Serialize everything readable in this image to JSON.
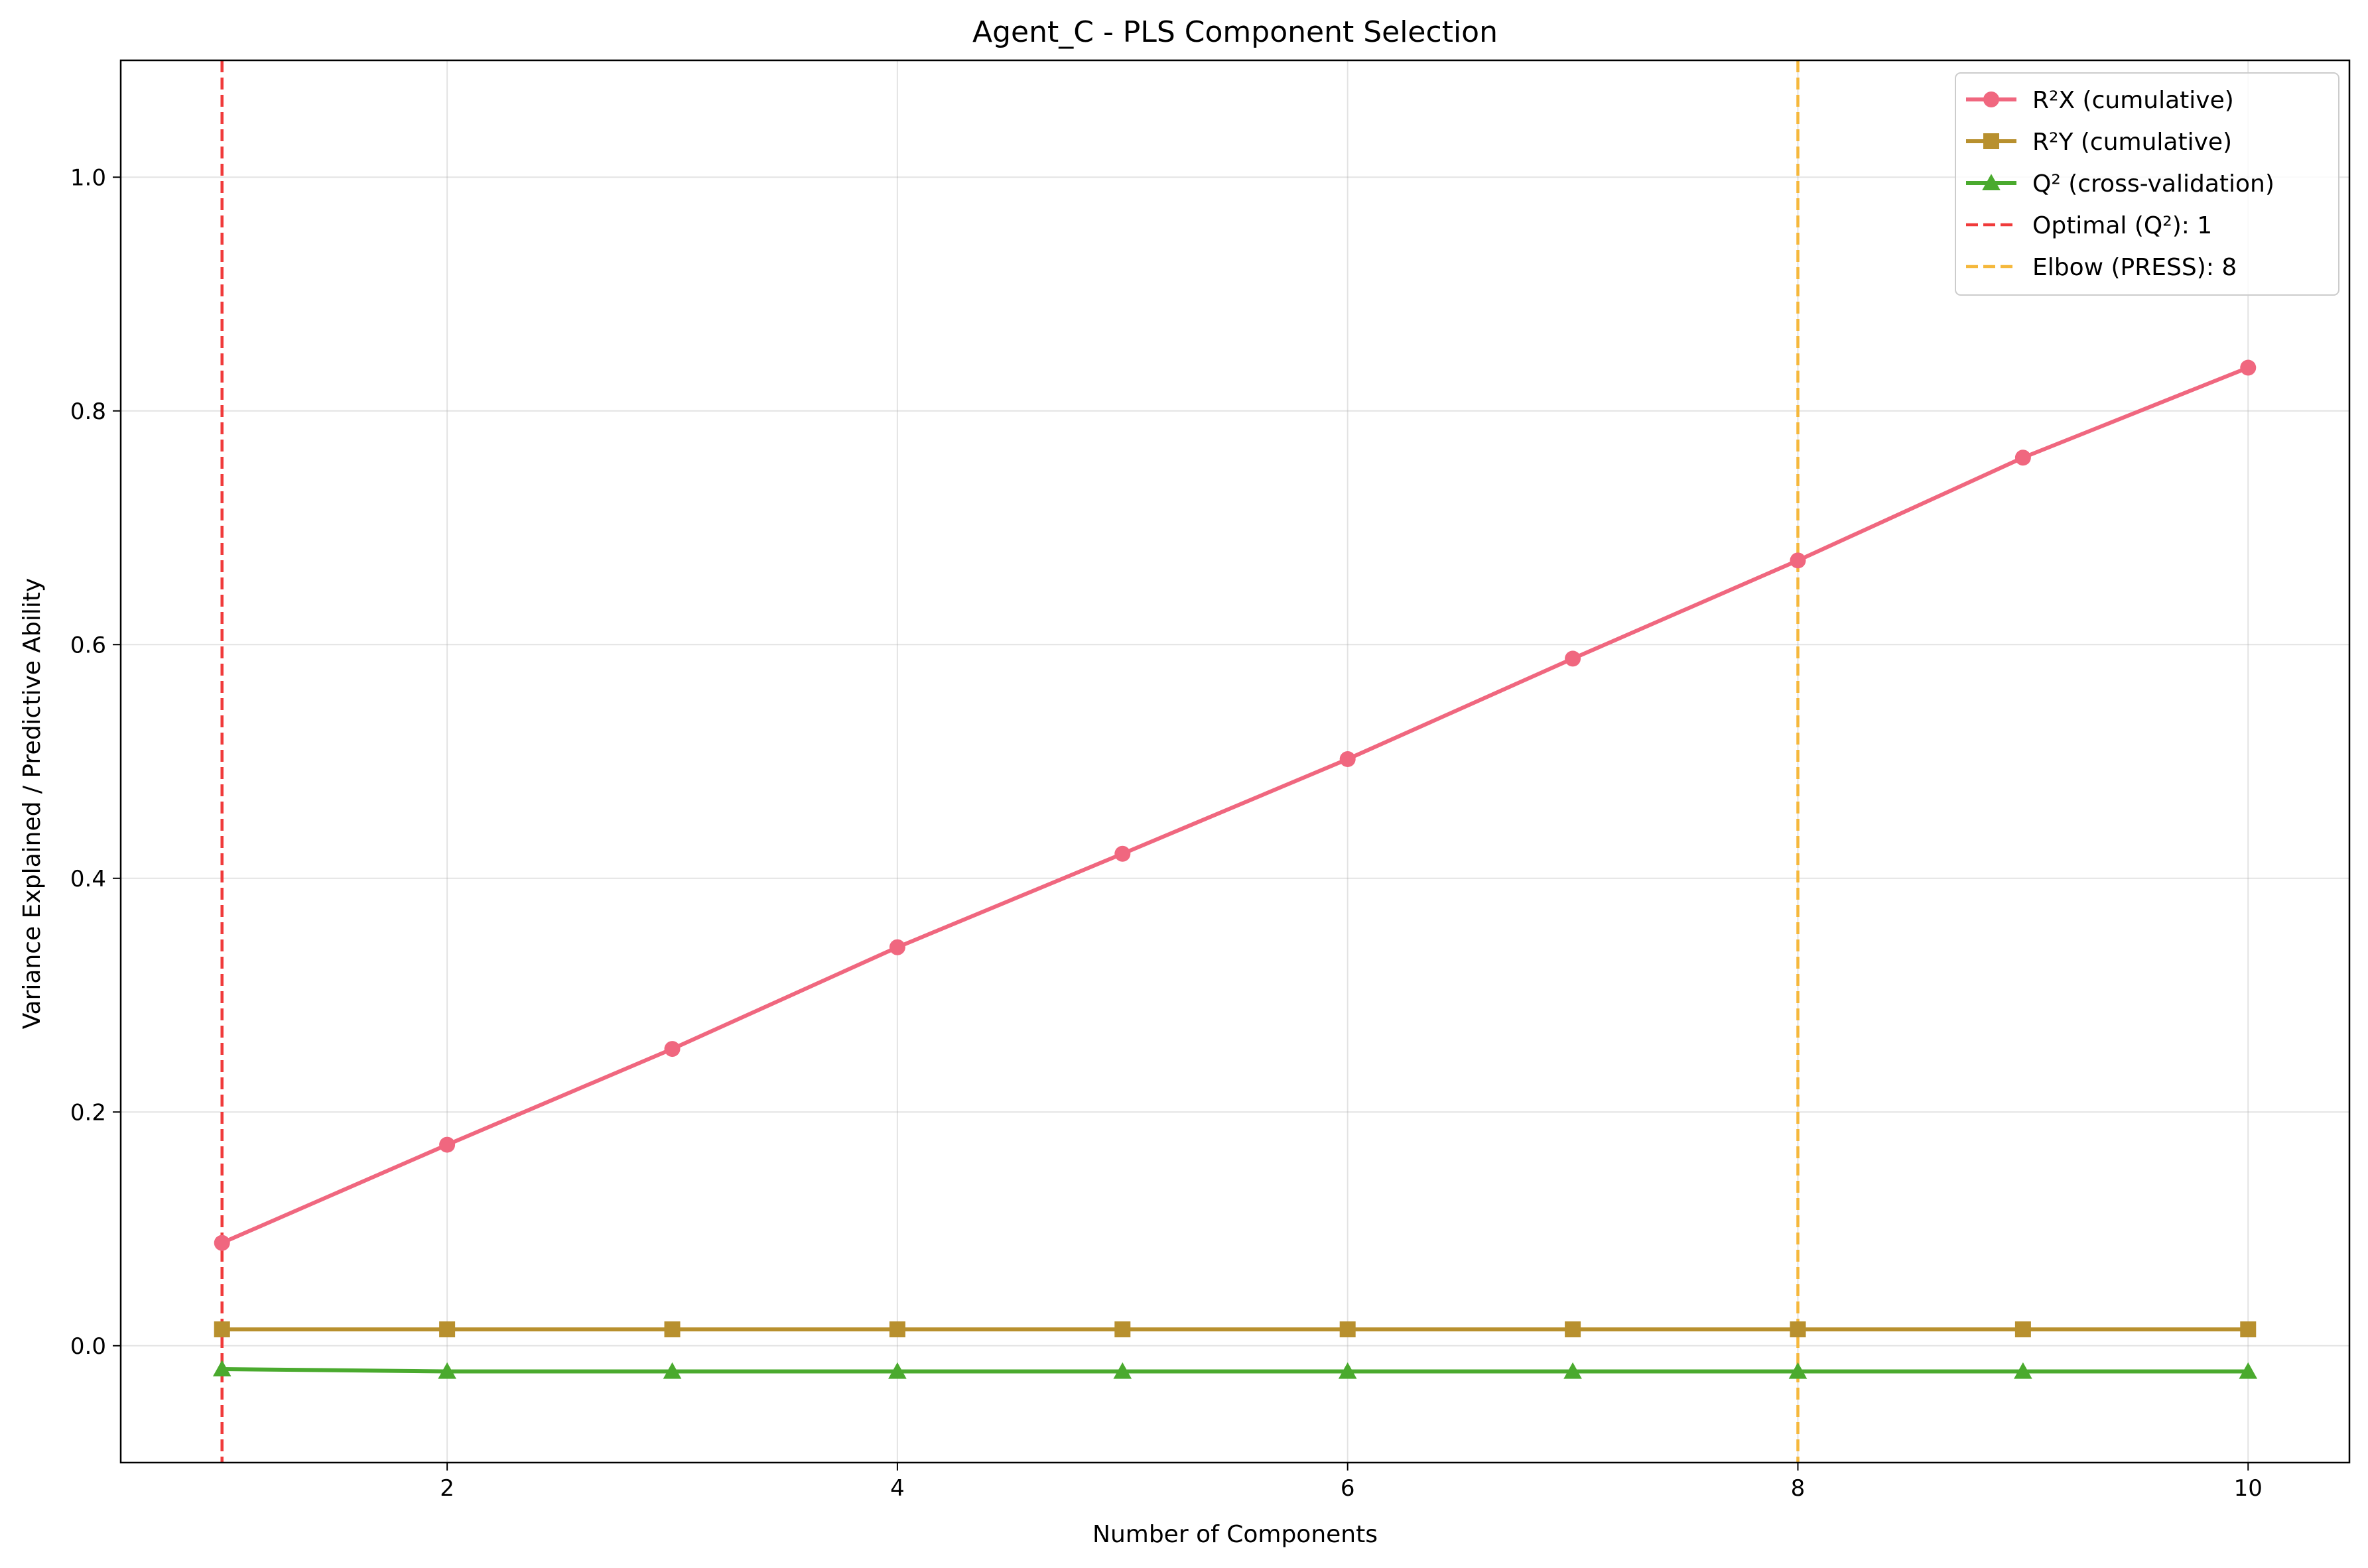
{
  "chart_data": {
    "type": "line",
    "title": "Agent_C - PLS Component Selection",
    "xlabel": "Number of Components",
    "ylabel": "Variance Explained / Predictive Ability",
    "xlim": [
      0.55,
      10.45
    ],
    "ylim": [
      -0.1,
      1.1
    ],
    "x_ticks": [
      2,
      4,
      6,
      8,
      10
    ],
    "y_ticks": [
      0.0,
      0.2,
      0.4,
      0.6,
      0.8,
      1.0
    ],
    "x_tick_labels": [
      "2",
      "4",
      "6",
      "8",
      "10"
    ],
    "y_tick_labels": [
      "0.0",
      "0.2",
      "0.4",
      "0.6",
      "0.8",
      "1.0"
    ],
    "grid": true,
    "legend_position": "top-right",
    "x": [
      1,
      2,
      3,
      4,
      5,
      6,
      7,
      8,
      9,
      10
    ],
    "series": [
      {
        "name": "R²X (cumulative)",
        "color": "#f0677f",
        "marker": "circle",
        "values": [
          0.088,
          0.172,
          0.254,
          0.341,
          0.421,
          0.502,
          0.588,
          0.672,
          0.76,
          0.837
        ]
      },
      {
        "name": "R²Y (cumulative)",
        "color": "#b8902e",
        "marker": "square",
        "values": [
          0.014,
          0.014,
          0.014,
          0.014,
          0.014,
          0.014,
          0.014,
          0.014,
          0.014,
          0.014
        ]
      },
      {
        "name": "Q² (cross-validation)",
        "color": "#4aaa2e",
        "marker": "triangle",
        "values": [
          -0.02,
          -0.022,
          -0.022,
          -0.022,
          -0.022,
          -0.022,
          -0.022,
          -0.022,
          -0.022,
          -0.022
        ]
      }
    ],
    "vlines": [
      {
        "name": "Optimal (Q²): 1",
        "x": 1,
        "color": "#f03a3a"
      },
      {
        "name": "Elbow (PRESS): 8",
        "x": 8,
        "color": "#f5b83c"
      }
    ]
  }
}
